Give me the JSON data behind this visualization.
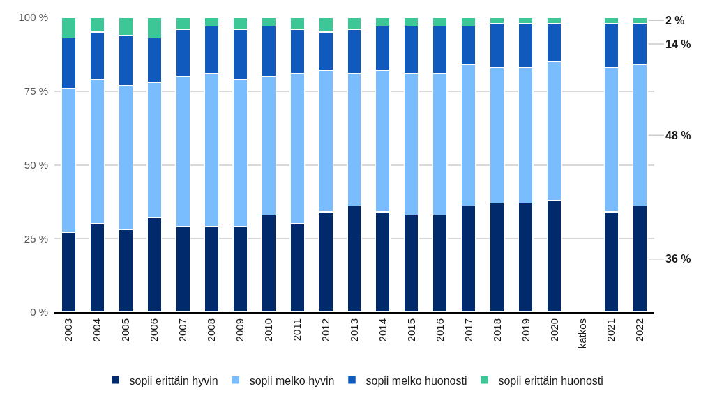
{
  "chart_data": {
    "type": "bar",
    "stacked": true,
    "categories": [
      "2003",
      "2004",
      "2005",
      "2006",
      "2007",
      "2008",
      "2009",
      "2010",
      "2011",
      "2012",
      "2013",
      "2014",
      "2015",
      "2016",
      "2017",
      "2018",
      "2019",
      "2020",
      "katkos",
      "2021",
      "2022"
    ],
    "series": [
      {
        "name": "sopii erittäin hyvin",
        "color": "#002a6c",
        "values": [
          27,
          30,
          28,
          32,
          29,
          29,
          29,
          33,
          30,
          34,
          36,
          34,
          33,
          33,
          36,
          37,
          37,
          38,
          null,
          34,
          36
        ],
        "value_labels": [
          null,
          null,
          null,
          null,
          null,
          null,
          null,
          null,
          null,
          null,
          null,
          null,
          null,
          null,
          null,
          null,
          null,
          null,
          null,
          null,
          "36 %"
        ]
      },
      {
        "name": "sopii melko hyvin",
        "color": "#79bdfe",
        "values": [
          49,
          49,
          49,
          46,
          51,
          52,
          50,
          47,
          51,
          48,
          45,
          48,
          48,
          48,
          48,
          46,
          46,
          47,
          null,
          49,
          48
        ],
        "value_labels": [
          null,
          null,
          null,
          null,
          null,
          null,
          null,
          null,
          null,
          null,
          null,
          null,
          null,
          null,
          null,
          null,
          null,
          null,
          null,
          null,
          "48 %"
        ]
      },
      {
        "name": "sopii melko huonosti",
        "color": "#105abe",
        "values": [
          17,
          16,
          17,
          15,
          16,
          16,
          17,
          17,
          15,
          13,
          15,
          15,
          16,
          16,
          13,
          15,
          15,
          13,
          null,
          15,
          14
        ],
        "value_labels": [
          null,
          null,
          null,
          null,
          null,
          null,
          null,
          null,
          null,
          null,
          null,
          null,
          null,
          null,
          null,
          null,
          null,
          null,
          null,
          null,
          "14 %"
        ]
      },
      {
        "name": "sopii erittäin huonosti",
        "color": "#3dc796",
        "values": [
          7,
          5,
          6,
          7,
          4,
          3,
          4,
          3,
          4,
          5,
          4,
          3,
          3,
          3,
          3,
          2,
          2,
          2,
          null,
          2,
          2
        ],
        "value_labels": [
          null,
          null,
          null,
          null,
          null,
          null,
          null,
          null,
          null,
          null,
          null,
          null,
          null,
          null,
          null,
          null,
          null,
          null,
          null,
          null,
          "2 %"
        ]
      }
    ],
    "ylim": [
      0,
      100
    ],
    "yticks": [
      {
        "value": 0,
        "label": "0 %"
      },
      {
        "value": 25,
        "label": "25 %"
      },
      {
        "value": 50,
        "label": "50 %"
      },
      {
        "value": 75,
        "label": "75 %"
      },
      {
        "value": 100,
        "label": "100 %"
      }
    ],
    "grid": "y",
    "legend": "bottom"
  }
}
